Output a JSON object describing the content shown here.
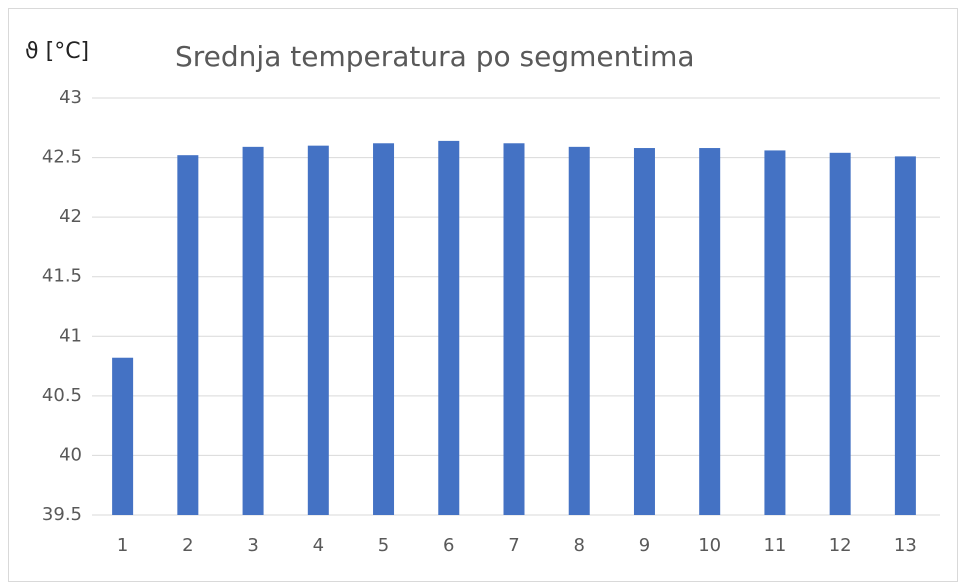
{
  "chart_data": {
    "type": "bar",
    "title": "Srednja temperatura po segmentima",
    "y_label": "ϑ [°C]",
    "categories": [
      "1",
      "2",
      "3",
      "4",
      "5",
      "6",
      "7",
      "8",
      "9",
      "10",
      "11",
      "12",
      "13"
    ],
    "values": [
      40.82,
      42.52,
      42.59,
      42.6,
      42.62,
      42.64,
      42.62,
      42.59,
      42.58,
      42.58,
      42.56,
      42.54,
      42.51
    ],
    "color": "#4472c4",
    "ylim": [
      39.5,
      43
    ],
    "yticks": [
      39.5,
      40,
      40.5,
      41,
      41.5,
      42,
      42.5,
      43
    ],
    "grid": true
  }
}
